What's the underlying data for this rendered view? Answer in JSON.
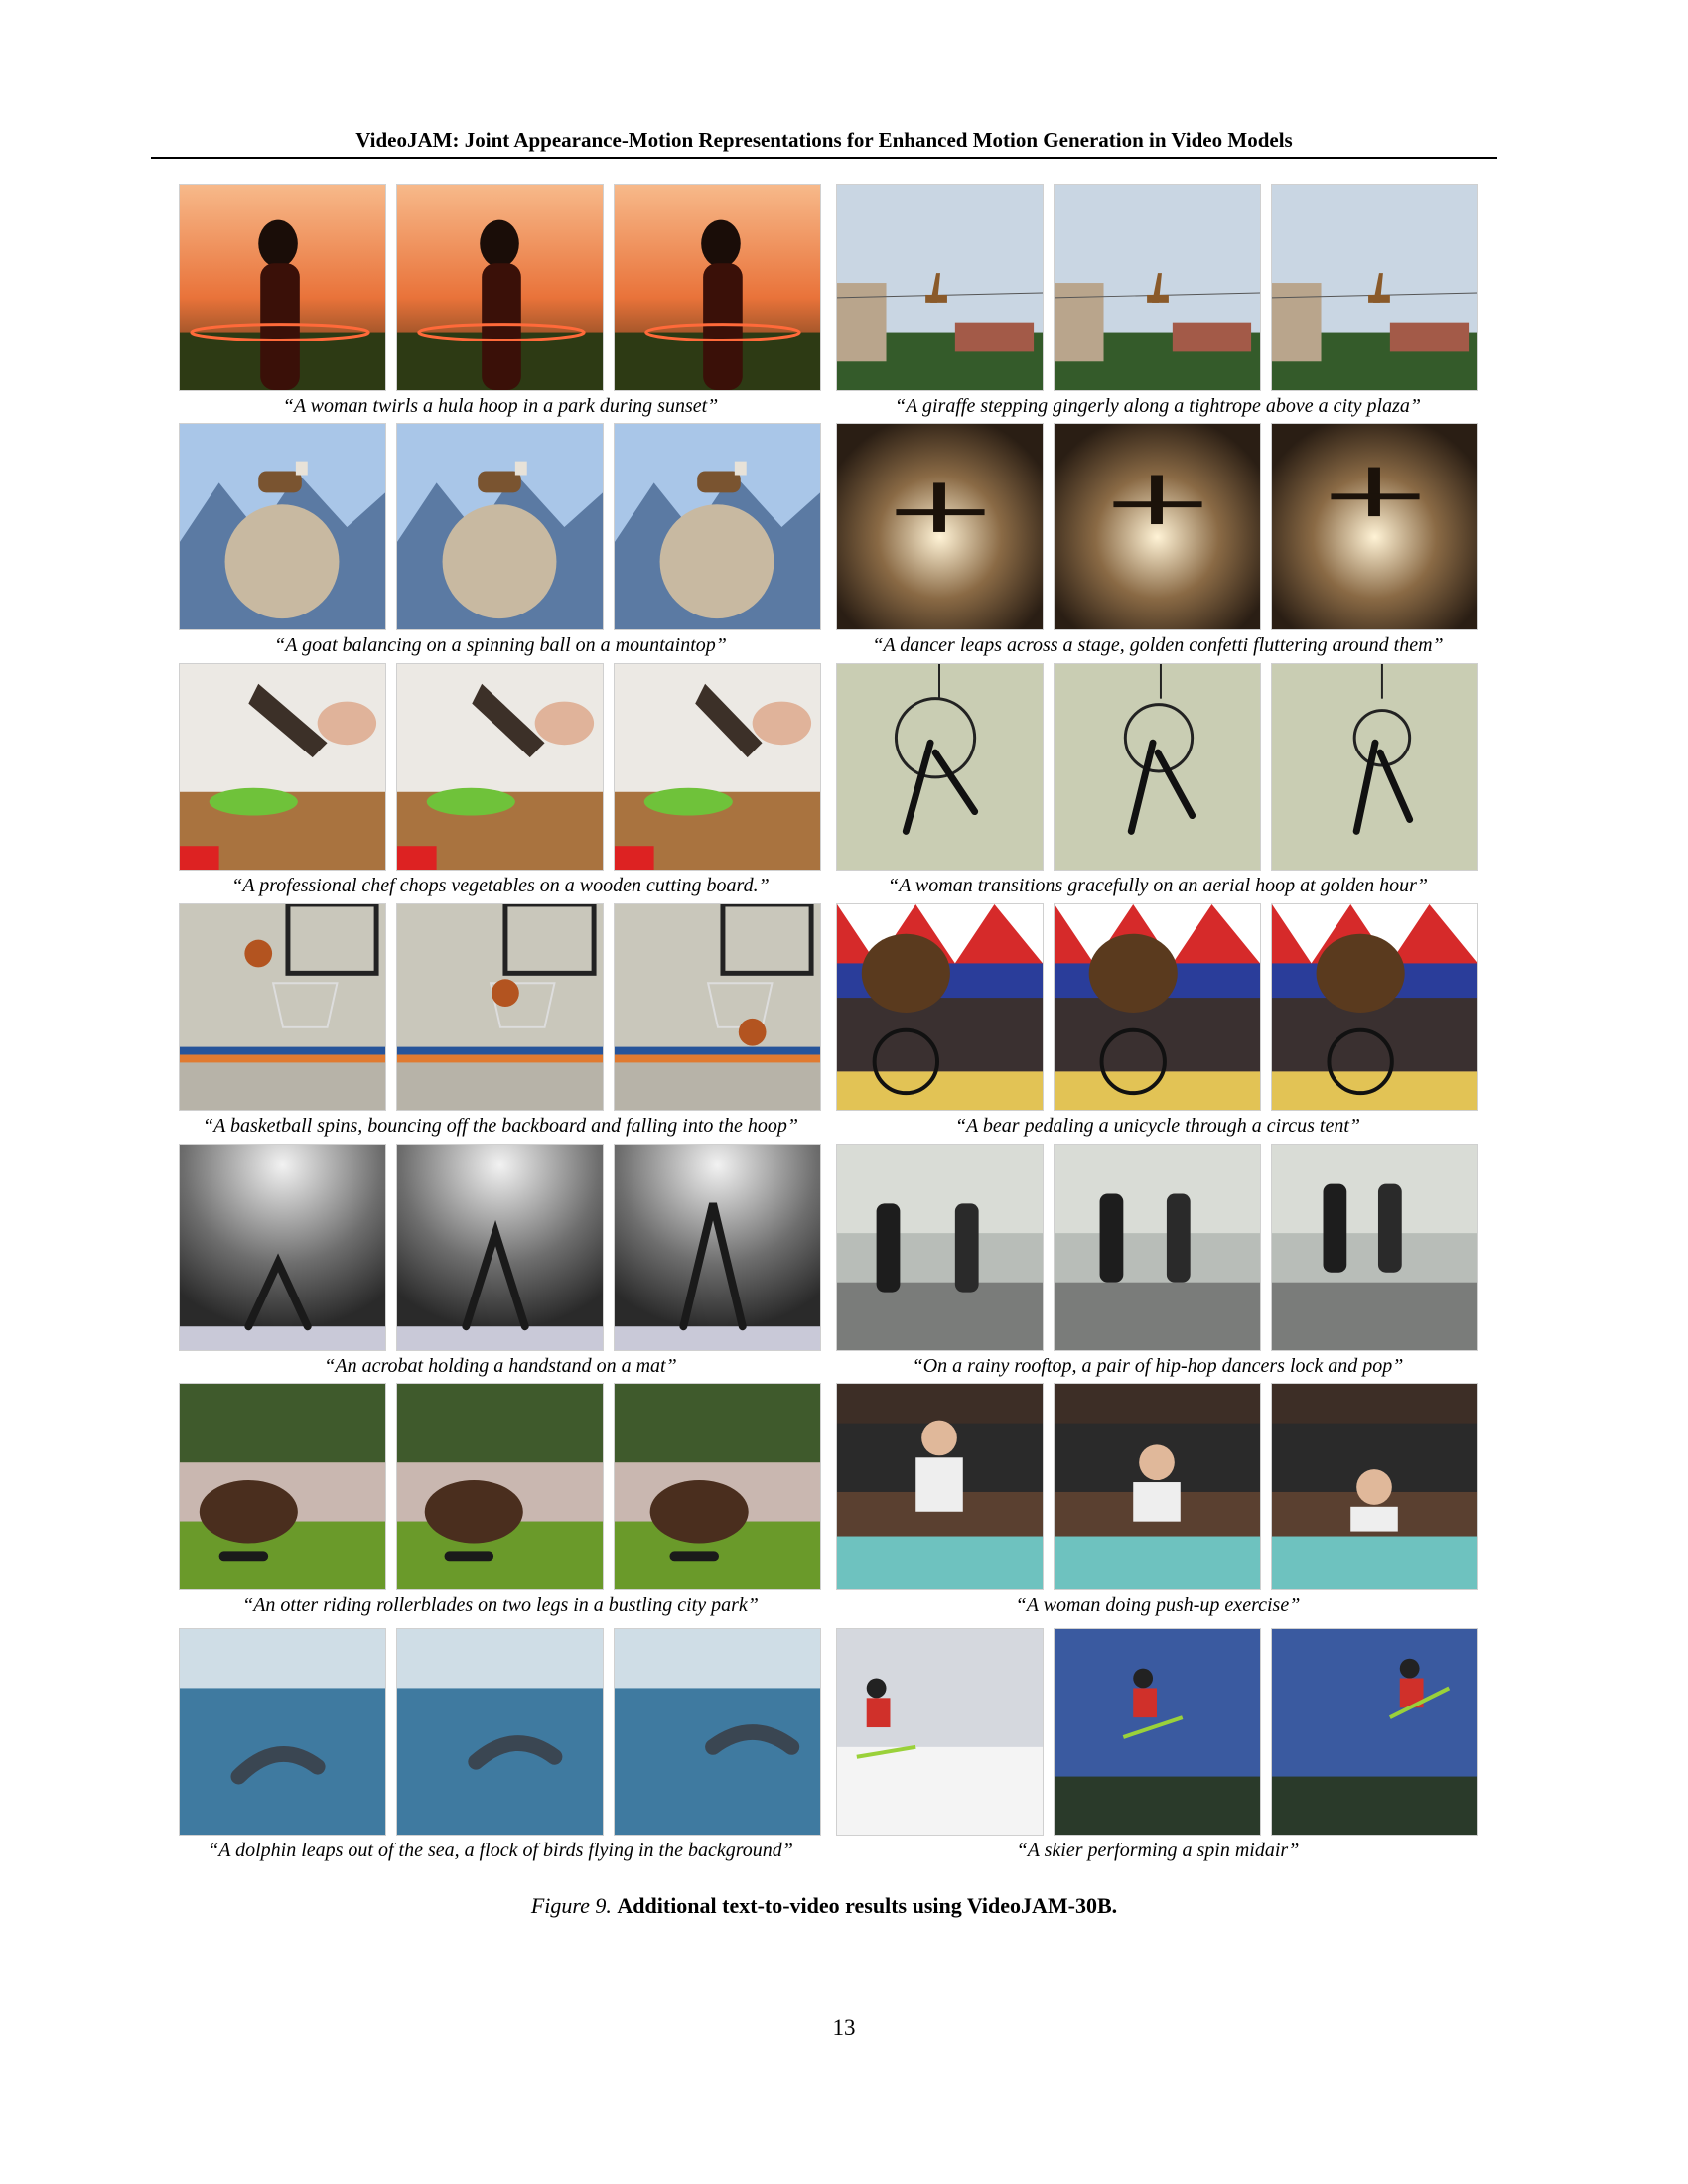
{
  "header": {
    "title": "VideoJAM: Joint Appearance-Motion Representations for Enhanced Motion Generation in Video Models"
  },
  "panels": [
    {
      "caption": "“A woman twirls a hula hoop in a park during sunset”",
      "scene": "sunset"
    },
    {
      "caption": "“A giraffe stepping gingerly along a tightrope above a city plaza”",
      "scene": "sky"
    },
    {
      "caption": "“A goat balancing on a spinning ball on a mountaintop”",
      "scene": "mountain"
    },
    {
      "caption": "“A dancer leaps across a stage, golden confetti fluttering around them”",
      "scene": "stage"
    },
    {
      "caption": "“A professional chef chops vegetables on a wooden cutting board.”",
      "scene": "kitchen"
    },
    {
      "caption": "“A woman transitions gracefully on an aerial hoop at golden hour”",
      "scene": "aerial"
    },
    {
      "caption": "“A basketball spins, bouncing off the backboard and falling into the hoop”",
      "scene": "gym"
    },
    {
      "caption": "“A bear pedaling a unicycle through a circus tent”",
      "scene": "circus"
    },
    {
      "caption": "“An acrobat holding a handstand on a mat”",
      "scene": "spotlight"
    },
    {
      "caption": "“On a rainy rooftop, a pair of hip-hop dancers lock and pop”",
      "scene": "rooftop"
    },
    {
      "caption": "“An otter riding rollerblades on two legs in a bustling city park”",
      "scene": "park"
    },
    {
      "caption": "“A woman doing push-up exercise”",
      "scene": "living"
    },
    {
      "caption": "“A dolphin leaps out of the sea, a flock of birds flying in the background”",
      "scene": "sea"
    },
    {
      "caption": "“A skier performing a spin midair”",
      "scene": "ski"
    }
  ],
  "figure": {
    "label": "Figure 9.",
    "text": "Additional text-to-video results using VideoJAM-30B."
  },
  "page_number": "13"
}
